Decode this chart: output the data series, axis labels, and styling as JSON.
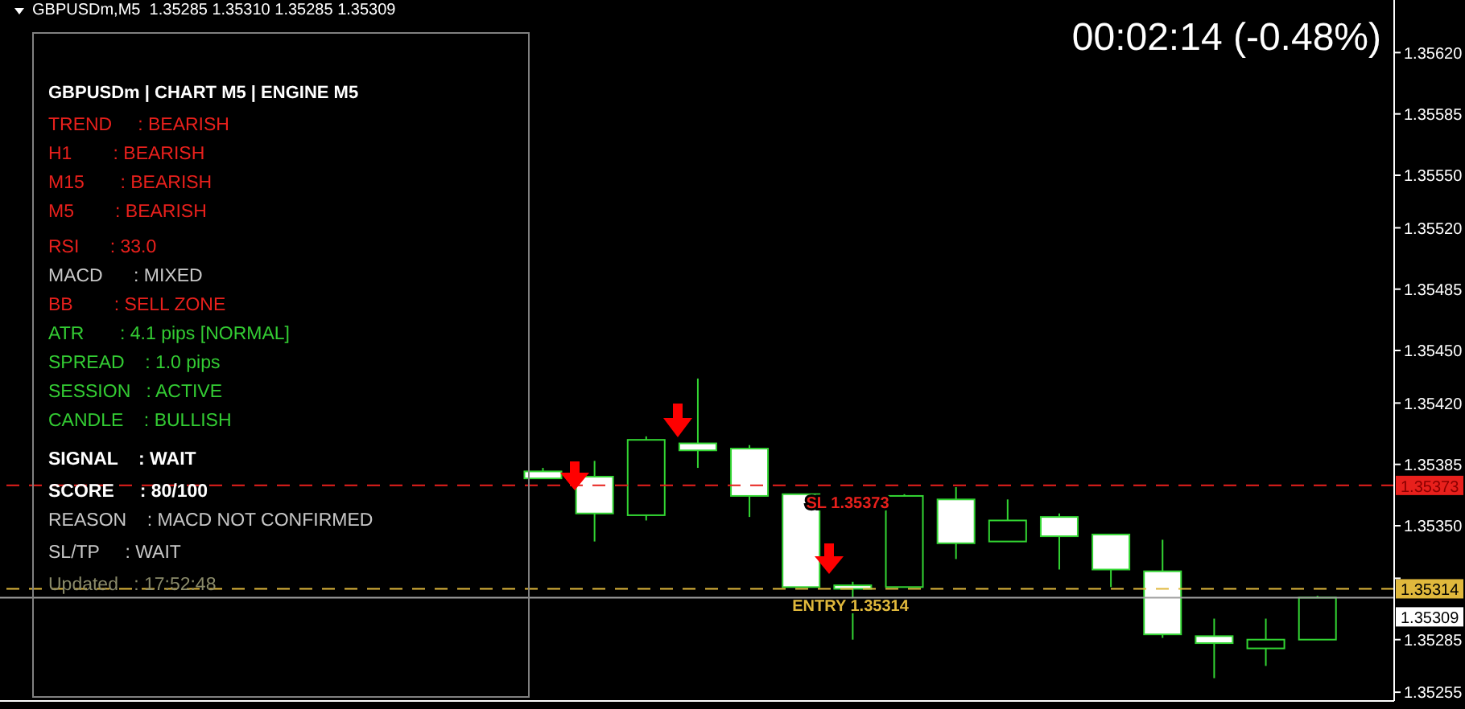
{
  "chart_data": {
    "type": "candlestick",
    "title": "GBPUSDm,M5  1.35285 1.35310 1.35285 1.35309",
    "categories": [
      null,
      null,
      null,
      null,
      null,
      null,
      null,
      null,
      null,
      null,
      null,
      null,
      null,
      null,
      null,
      null,
      null,
      null,
      null,
      null,
      null,
      null,
      null,
      null,
      null,
      null,
      null
    ],
    "ohlc": [
      null,
      null,
      null,
      null,
      null,
      null,
      null,
      null,
      null,
      null,
      [
        1.35381,
        1.35383,
        1.35377,
        1.35377
      ],
      [
        1.35378,
        1.35387,
        1.35341,
        1.35357
      ],
      [
        1.35356,
        1.35401,
        1.35353,
        1.35399
      ],
      [
        1.35397,
        1.35434,
        1.35383,
        1.35393
      ],
      [
        1.35394,
        1.35396,
        1.35355,
        1.35367
      ],
      [
        1.35368,
        1.35368,
        1.35315,
        1.35315
      ],
      [
        1.35316,
        1.35318,
        1.35285,
        1.35314
      ],
      [
        1.35315,
        1.35368,
        1.35315,
        1.35367
      ],
      [
        1.35365,
        1.35372,
        1.35331,
        1.3534
      ],
      [
        1.35341,
        1.35365,
        1.35341,
        1.35353
      ],
      [
        1.35355,
        1.35357,
        1.35325,
        1.35344
      ],
      [
        1.35345,
        1.35345,
        1.35315,
        1.35325
      ],
      [
        1.35324,
        1.35342,
        1.35286,
        1.35288
      ],
      [
        1.35287,
        1.35297,
        1.35263,
        1.35283
      ],
      [
        1.3528,
        1.35297,
        1.3527,
        1.35285
      ],
      [
        1.35285,
        1.3531,
        1.35285,
        1.35309
      ],
      null
    ],
    "ylim": [
      1.3525,
      1.3565
    ],
    "yticks": [
      {
        "value": 1.3562,
        "label": "1.35620"
      },
      1.35585,
      {
        "value": 1.3555,
        "label": "1.35550"
      },
      {
        "value": 1.3552,
        "label": "1.35520"
      },
      1.35485,
      {
        "value": 1.3545,
        "label": "1.35450"
      },
      {
        "value": 1.3542,
        "label": "1.35420"
      },
      1.35385,
      {
        "value": 1.3535,
        "label": "1.35350"
      },
      {
        "value": 1.3532,
        "label": null
      },
      1.35285,
      1.35255
    ],
    "tick_labels": "y",
    "grid": false,
    "legend": false,
    "ref_lines": [
      {
        "axis": "y",
        "value": 1.35373,
        "label": "SL 1.35373",
        "color": "#e8201c",
        "line_style": "dashed"
      },
      {
        "axis": "y",
        "value": 1.35314,
        "label": "ENTRY 1.35314",
        "color": "#e0b83c",
        "line_style": "dashed"
      },
      {
        "axis": "y",
        "value": 1.35309,
        "label": null,
        "color": "#a0a0a0",
        "line_style": "solid"
      }
    ],
    "annotations": [
      "00:02:14 (-0.48%)",
      "GBPUSDm | CHART M5 | ENGINE M5",
      "TREND     : BEARISH",
      "H1        : BEARISH",
      "M15       : BEARISH",
      "M5        : BEARISH",
      "RSI      : 33.0",
      "MACD      : MIXED",
      "BB        : SELL ZONE",
      "ATR       : 4.1 pips [NORMAL]",
      "SPREAD    : 1.0 pips",
      "SESSION   : ACTIVE",
      "CANDLE    : BULLISH",
      "SIGNAL    : WAIT",
      "SCORE     : 80/100",
      "REASON    : MACD NOT CONFIRMED",
      "SL/TP     : WAIT",
      "Updated   : 17:52:48",
      "1.35373",
      "1.35314",
      "1.35309"
    ]
  }
}
